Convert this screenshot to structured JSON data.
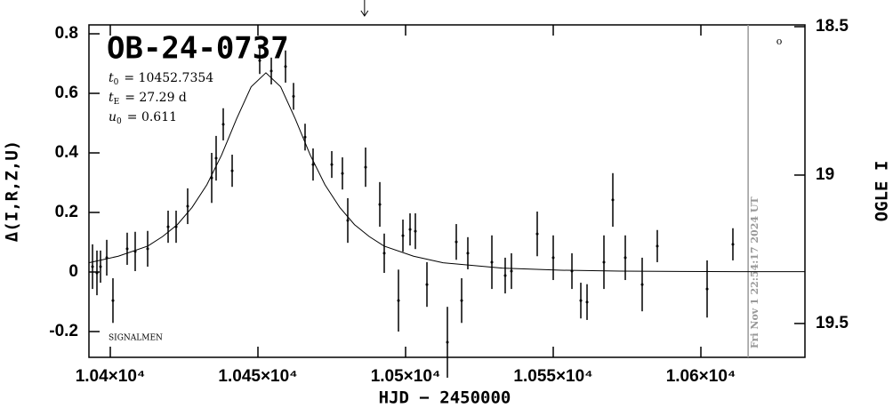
{
  "chart_data": {
    "type": "scatter",
    "title": "OB-24-0737",
    "parameters": [
      {
        "symbol": "t",
        "sub": "0",
        "text": "= 10452.7354"
      },
      {
        "symbol": "t",
        "sub": "E",
        "text": "= 27.29 d"
      },
      {
        "symbol": "u",
        "sub": "0",
        "text": "= 0.611"
      }
    ],
    "credit": "SIGNALMEN",
    "timestamp": "Fri Nov  1 22:54:17 2024 UT",
    "x_label": "HJD − 2450000",
    "y_label": "Δ(I,R,Z,U)",
    "y2_label": "OGLE I",
    "xlim": [
      10392.77,
      10635.24
    ],
    "ylim": [
      -0.2866,
      0.8299
    ],
    "y2lim": [
      18.494,
      19.614
    ],
    "xticks": [
      {
        "value": 10400,
        "label": "1.04×10⁴"
      },
      {
        "value": 10450,
        "label": "1.045×10⁴"
      },
      {
        "value": 10500,
        "label": "1.05×10⁴"
      },
      {
        "value": 10550,
        "label": "1.055×10⁴"
      },
      {
        "value": 10600,
        "label": "1.06×10⁴"
      }
    ],
    "yticks": [
      -0.2,
      0,
      0.2,
      0.4,
      0.6,
      0.8
    ],
    "y2ticks": [
      18.5,
      19,
      19.5
    ],
    "now_line": 10616,
    "arrow_x": 10486.1,
    "color": "#000000",
    "now_color": "#999999",
    "x": [
      10393.98,
      10395.48,
      10396.69,
      10398.8,
      10400.9,
      10405.72,
      10408.43,
      10412.65,
      10419.58,
      10422.29,
      10426.2,
      10434.34,
      10435.84,
      10438.25,
      10441.27,
      10450.6,
      10454.52,
      10459.34,
      10462.05,
      10465.96,
      10468.67,
      10475.0,
      10478.61,
      10480.42,
      10486.45,
      10491.27,
      10492.77,
      10497.59,
      10499.1,
      10501.51,
      10503.31,
      10507.23,
      10514.16,
      10517.17,
      10518.98,
      10521.08,
      10529.22,
      10533.73,
      10535.84,
      10544.58,
      10550.0,
      10556.33,
      10559.34,
      10561.45,
      10567.17,
      10570.18,
      10574.4,
      10580.12,
      10585.24,
      10602.11,
      10610.84
    ],
    "values": [
      0.018,
      -0.003,
      0.018,
      0.048,
      -0.096,
      0.078,
      0.069,
      0.078,
      0.152,
      0.152,
      0.221,
      0.316,
      0.382,
      0.496,
      0.34,
      0.71,
      0.675,
      0.69,
      0.59,
      0.453,
      0.361,
      0.361,
      0.331,
      0.173,
      0.352,
      0.227,
      0.063,
      -0.096,
      0.122,
      0.143,
      0.137,
      -0.042,
      -0.236,
      0.101,
      -0.096,
      0.063,
      0.033,
      -0.012,
      0.003,
      0.128,
      0.048,
      0.003,
      -0.096,
      -0.101,
      0.033,
      0.242,
      0.048,
      -0.042,
      0.087,
      -0.057,
      0.093
    ],
    "errors": [
      0.075,
      0.075,
      0.054,
      0.06,
      0.075,
      0.054,
      0.066,
      0.06,
      0.054,
      0.054,
      0.06,
      0.084,
      0.075,
      0.054,
      0.054,
      0.045,
      0.045,
      0.054,
      0.045,
      0.045,
      0.054,
      0.045,
      0.054,
      0.075,
      0.066,
      0.075,
      0.066,
      0.104,
      0.054,
      0.054,
      0.06,
      0.075,
      0.119,
      0.06,
      0.075,
      0.054,
      0.09,
      0.06,
      0.06,
      0.075,
      0.075,
      0.06,
      0.06,
      0.06,
      0.09,
      0.09,
      0.075,
      0.09,
      0.054,
      0.096,
      0.054
    ],
    "model": {
      "x": [
        10392.7,
        10402.7,
        10412.7,
        10417.7,
        10422.7,
        10427.7,
        10432.7,
        10437.7,
        10442.7,
        10447.7,
        10452.7,
        10457.7,
        10462.7,
        10467.7,
        10472.7,
        10477.7,
        10482.7,
        10487.7,
        10492.7,
        10502.7,
        10512.7,
        10532.7,
        10552.7,
        10572.7,
        10612.7,
        10635.2
      ],
      "values": [
        0.031,
        0.053,
        0.087,
        0.119,
        0.159,
        0.217,
        0.293,
        0.393,
        0.513,
        0.622,
        0.669,
        0.622,
        0.513,
        0.393,
        0.293,
        0.217,
        0.159,
        0.119,
        0.087,
        0.053,
        0.031,
        0.013,
        0.006,
        0.003,
        0.001,
        0.001
      ]
    }
  }
}
